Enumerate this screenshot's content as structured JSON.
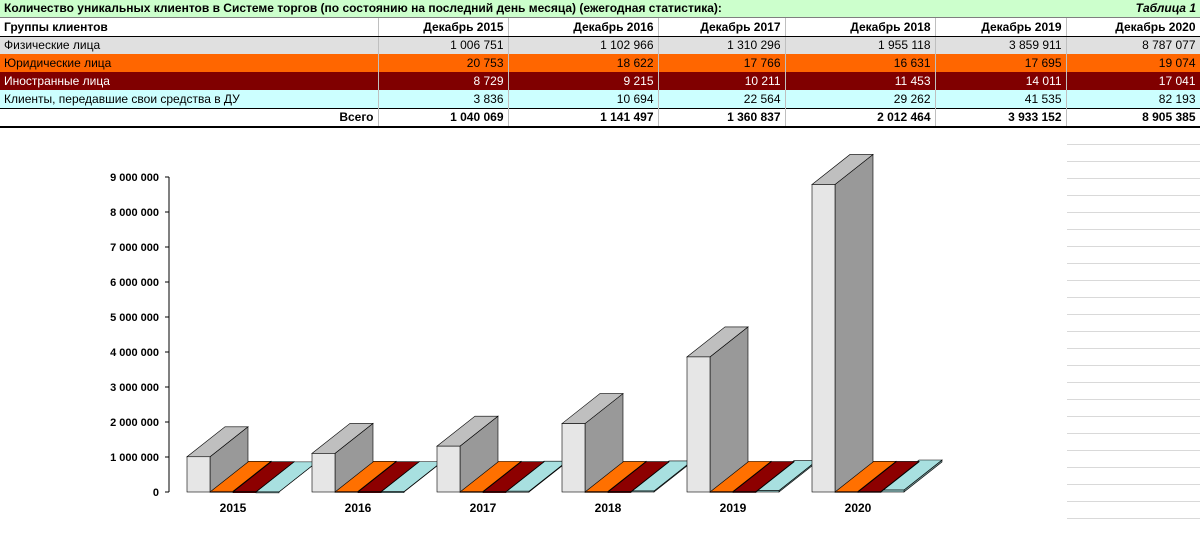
{
  "header": {
    "title": "Количество уникальных клиентов в Системе торгов (по состоянию на последний день месяца) (ежегодная статистика):",
    "table_no": "Таблица 1"
  },
  "table": {
    "group_header": "Группы клиентов",
    "columns": [
      "Декабрь 2015",
      "Декабрь 2016",
      "Декабрь 2017",
      "Декабрь 2018",
      "Декабрь 2019",
      "Декабрь 2020"
    ],
    "rows": [
      {
        "label": "Физические лица",
        "values": [
          "1 006 751",
          "1 102 966",
          "1 310 296",
          "1 955 118",
          "3 859 911",
          "8 787 077"
        ]
      },
      {
        "label": "Юридические лица",
        "values": [
          "20 753",
          "18 622",
          "17 766",
          "16 631",
          "17 695",
          "19 074"
        ]
      },
      {
        "label": "Иностранные лица",
        "values": [
          "8 729",
          "9 215",
          "10 211",
          "11 453",
          "14 011",
          "17 041"
        ]
      },
      {
        "label": "Клиенты, передавшие свои средства в ДУ",
        "values": [
          "3 836",
          "10 694",
          "22 564",
          "29 262",
          "41 535",
          "82 193"
        ]
      }
    ],
    "total_label": "Всего",
    "totals": [
      "1 040 069",
      "1 141 497",
      "1 360 837",
      "2 012 464",
      "3 933 152",
      "8 905 385"
    ]
  },
  "colors": {
    "physical": "#e6e6e6",
    "legal": "#ff6600",
    "foreign": "#800000",
    "trust": "#99cccc"
  },
  "chart_data": {
    "type": "bar",
    "title": "",
    "xlabel": "",
    "ylabel": "",
    "categories": [
      "2015",
      "2016",
      "2017",
      "2018",
      "2019",
      "2020"
    ],
    "ylim": [
      0,
      9000000
    ],
    "yticks": [
      "0",
      "1 000 000",
      "2 000 000",
      "3 000 000",
      "4 000 000",
      "5 000 000",
      "6 000 000",
      "7 000 000",
      "8 000 000",
      "9 000 000"
    ],
    "series": [
      {
        "name": "Физические лица",
        "values": [
          1006751,
          1102966,
          1310296,
          1955118,
          3859911,
          8787077
        ]
      },
      {
        "name": "Юридические лица",
        "values": [
          20753,
          18622,
          17766,
          16631,
          17695,
          19074
        ]
      },
      {
        "name": "Иностранные лица",
        "values": [
          8729,
          9215,
          10211,
          11453,
          14011,
          17041
        ]
      },
      {
        "name": "Клиенты, передавшие свои средства в ДУ",
        "values": [
          3836,
          10694,
          22564,
          29262,
          41535,
          82193
        ]
      }
    ]
  }
}
